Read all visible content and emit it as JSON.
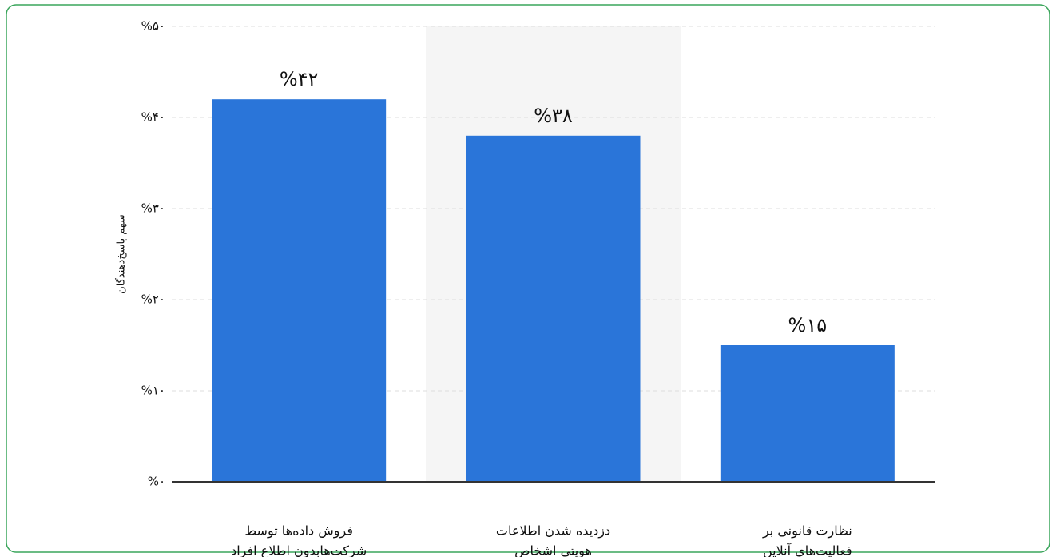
{
  "chart_data": {
    "type": "bar",
    "y_label": "سهم پاسخ‌دهندگان",
    "categories": [
      [
        "فروش داده‌ها توسط",
        "شرکت‌هابدون اطلاع افراد"
      ],
      [
        "دزدیده شدن اطلاعات",
        "هویتی اشخاص"
      ],
      [
        "نظارت قانونی بر",
        "فعالیت‌های آنلاین"
      ]
    ],
    "values": [
      42,
      38,
      15
    ],
    "value_labels": [
      "%۴۲",
      "%۳۸",
      "%۱۵"
    ],
    "color": "#2a75d9",
    "ylim": [
      0,
      50
    ],
    "yticks": [
      {
        "value": 0,
        "label": "%۰"
      },
      {
        "value": 10,
        "label": "%۱۰"
      },
      {
        "value": 20,
        "label": "%۲۰"
      },
      {
        "value": 30,
        "label": "%۳۰"
      },
      {
        "value": 40,
        "label": "%۴۰"
      },
      {
        "value": 50,
        "label": "%۵۰"
      }
    ],
    "grid": true
  }
}
